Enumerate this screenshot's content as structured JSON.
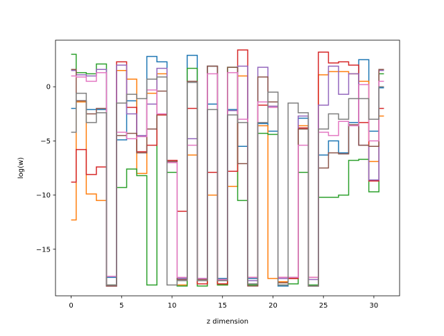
{
  "chart_data": {
    "type": "line",
    "drawstyle": "steps-mid",
    "xlabel": "z dimension",
    "ylabel": "log(w)",
    "xlim": [
      -1.55,
      32.55
    ],
    "ylim": [
      -19.3,
      4.3
    ],
    "xticks": [
      0,
      5,
      10,
      15,
      20,
      25,
      30
    ],
    "yticks": [
      0,
      -5,
      -10,
      -15
    ],
    "x": [
      0,
      1,
      2,
      3,
      4,
      5,
      6,
      7,
      8,
      9,
      10,
      11,
      12,
      13,
      14,
      15,
      16,
      17,
      18,
      19,
      20,
      21,
      22,
      23,
      24,
      25,
      26,
      27,
      28,
      29,
      30,
      31
    ],
    "series": [
      {
        "color": "#1f77b4",
        "values": [
          -2.0,
          -1.3,
          -2.1,
          -2.1,
          -17.6,
          -4.9,
          -1.3,
          -4.6,
          2.8,
          2.3,
          -6.9,
          -17.7,
          2.9,
          -17.7,
          -1.6,
          -17.7,
          -2.1,
          -5.5,
          -17.7,
          -3.4,
          -4.1,
          -18.4,
          -17.7,
          -2.9,
          -18.4,
          -6.3,
          -5.0,
          -6.1,
          -3.3,
          2.5,
          -4.1,
          -0.1
        ]
      },
      {
        "color": "#ff7f0e",
        "values": [
          -12.3,
          -1.4,
          -9.9,
          -10.5,
          -18.3,
          1.5,
          0.7,
          -8.0,
          -0.6,
          1.2,
          -7.0,
          -18.3,
          -6.3,
          -18.2,
          -10.0,
          -18.3,
          -9.2,
          1.0,
          -18.2,
          -3.6,
          -17.7,
          -18.0,
          -17.7,
          -3.6,
          -18.4,
          1.1,
          1.4,
          1.4,
          1.2,
          0.5,
          -6.9,
          -2.7
        ]
      },
      {
        "color": "#2ca02c",
        "values": [
          3.0,
          1.3,
          1.2,
          2.1,
          -18.3,
          -9.3,
          -7.6,
          -8.2,
          -18.3,
          -2.6,
          -7.9,
          -18.4,
          1.7,
          -18.4,
          1.9,
          -18.3,
          1.8,
          -10.5,
          -18.3,
          -4.3,
          -4.4,
          -18.3,
          -18.2,
          -7.9,
          -18.3,
          -10.2,
          -10.2,
          -10.0,
          -6.8,
          -6.7,
          -9.7,
          1.2
        ]
      },
      {
        "color": "#d62728",
        "values": [
          -8.8,
          -5.8,
          -8.1,
          -7.4,
          -18.4,
          2.3,
          -1.9,
          -6.0,
          -5.4,
          -2.6,
          -6.8,
          -11.5,
          -2.0,
          -18.2,
          -7.9,
          -18.2,
          -7.8,
          3.4,
          -17.6,
          -1.7,
          -1.8,
          -17.6,
          -17.7,
          -3.8,
          -17.6,
          3.2,
          2.2,
          2.3,
          2.0,
          -3.3,
          -8.7,
          -2.0
        ]
      },
      {
        "color": "#9467bd",
        "values": [
          1.5,
          1.1,
          1.0,
          1.6,
          -18.4,
          2.0,
          -2.5,
          -4.5,
          -1.6,
          1.7,
          -7.0,
          -17.7,
          -4.8,
          -17.7,
          1.9,
          -17.8,
          -2.2,
          1.9,
          -17.9,
          1.8,
          -1.8,
          -17.7,
          -17.6,
          -2.7,
          -17.8,
          -1.7,
          1.9,
          -0.7,
          1.2,
          -5.4,
          -8.6,
          1.5
        ]
      },
      {
        "color": "#8c564b",
        "values": [
          1.6,
          -1.3,
          -2.5,
          -2.0,
          -18.4,
          -4.5,
          -4.3,
          -6.1,
          -3.9,
          -0.4,
          -6.9,
          -17.8,
          0.5,
          -17.8,
          1.9,
          -17.8,
          1.8,
          -7.1,
          -18.4,
          0.9,
          -1.4,
          -18.1,
          -17.6,
          -3.9,
          -18.4,
          -7.5,
          -6.1,
          -6.2,
          -3.5,
          -5.4,
          -5.5,
          1.6
        ]
      },
      {
        "color": "#e377c2",
        "values": [
          1.0,
          0.9,
          0.5,
          1.3,
          -17.5,
          -4.2,
          -4.8,
          -4.6,
          -0.3,
          -2.5,
          -7.0,
          -17.6,
          -5.4,
          -17.7,
          1.2,
          -17.8,
          1.3,
          -3.0,
          -17.6,
          -1.4,
          -1.9,
          -17.6,
          -17.6,
          -5.4,
          -17.6,
          -4.2,
          -4.5,
          -3.2,
          -3.6,
          0.2,
          -5.0,
          0.5
        ]
      },
      {
        "color": "#7f7f7f",
        "values": [
          -4.2,
          -0.6,
          -3.3,
          -2.4,
          -18.3,
          -1.5,
          -0.7,
          -1.1,
          0.7,
          0.9,
          -18.3,
          -17.9,
          0.4,
          -17.9,
          -2.1,
          -17.9,
          -2.6,
          -3.3,
          -18.2,
          -3.3,
          -0.5,
          -18.3,
          -1.5,
          -2.4,
          -18.4,
          -3.9,
          -2.5,
          -3.0,
          -1.1,
          -1.1,
          -3.0,
          0.0
        ]
      }
    ]
  }
}
